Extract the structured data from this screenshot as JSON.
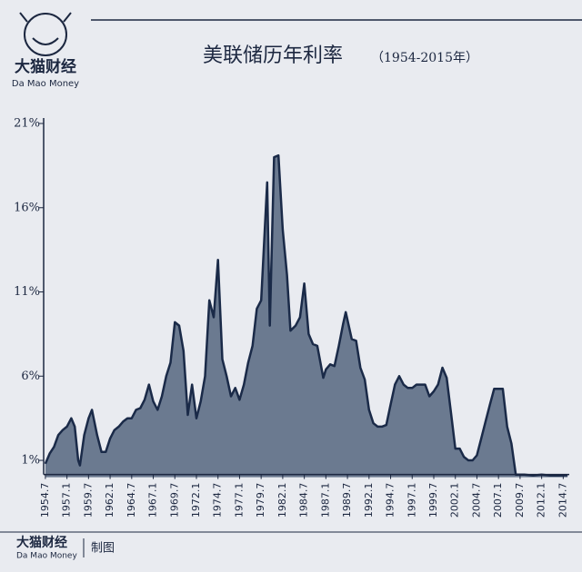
{
  "header": {
    "logo_cn": "大猫财经",
    "logo_en": "Da Mao Money"
  },
  "footer": {
    "logo_cn": "大猫财经",
    "logo_en": "Da Mao Money",
    "note": "制图"
  },
  "chart_data": {
    "type": "area",
    "title": "美联储历年利率",
    "subtitle": "（1954-2015年）",
    "color": "#6b7a90",
    "line_color": "#1a2a48",
    "xlim": [
      1954.3,
      2015.2
    ],
    "ylim": [
      0,
      21
    ],
    "yticks": [
      {
        "value": 1,
        "label": "1%"
      },
      {
        "value": 6,
        "label": "6%"
      },
      {
        "value": 11,
        "label": "11%"
      },
      {
        "value": 16,
        "label": "16%"
      },
      {
        "value": 21,
        "label": "21%"
      }
    ],
    "xticks": [
      {
        "value": 1954.5,
        "label": "1954.7"
      },
      {
        "value": 1957,
        "label": "1957.1"
      },
      {
        "value": 1959.5,
        "label": "1959.7"
      },
      {
        "value": 1962,
        "label": "1962.1"
      },
      {
        "value": 1964.5,
        "label": "1964.7"
      },
      {
        "value": 1967,
        "label": "1967.1"
      },
      {
        "value": 1969.5,
        "label": "1969.7"
      },
      {
        "value": 1972,
        "label": "1972.1"
      },
      {
        "value": 1974.5,
        "label": "1974.7"
      },
      {
        "value": 1977,
        "label": "1977.1"
      },
      {
        "value": 1979.5,
        "label": "1979.7"
      },
      {
        "value": 1982,
        "label": "1982.1"
      },
      {
        "value": 1984.5,
        "label": "1984.7"
      },
      {
        "value": 1987,
        "label": "1987.1"
      },
      {
        "value": 1989.5,
        "label": "1989.7"
      },
      {
        "value": 1992,
        "label": "1992.1"
      },
      {
        "value": 1994.5,
        "label": "1994.7"
      },
      {
        "value": 1997,
        "label": "1997.1"
      },
      {
        "value": 1999.5,
        "label": "1999.7"
      },
      {
        "value": 2002,
        "label": "2002.1"
      },
      {
        "value": 2004.5,
        "label": "2004.7"
      },
      {
        "value": 2007,
        "label": "2007.1"
      },
      {
        "value": 2009.5,
        "label": "2009.7"
      },
      {
        "value": 2012,
        "label": "2012.1"
      },
      {
        "value": 2014.5,
        "label": "2014.7"
      }
    ],
    "x": [
      1954.5,
      1955,
      1955.5,
      1956,
      1956.5,
      1957,
      1957.5,
      1957.9,
      1958.3,
      1958.5,
      1959,
      1959.5,
      1959.9,
      1960.5,
      1961,
      1961.5,
      1962,
      1962.5,
      1963,
      1963.5,
      1964,
      1964.5,
      1965,
      1965.5,
      1966,
      1966.5,
      1967,
      1967.5,
      1968,
      1968.5,
      1969,
      1969.5,
      1970,
      1970.5,
      1971,
      1971.5,
      1972,
      1972.5,
      1973,
      1973.5,
      1974,
      1974.5,
      1975,
      1975.5,
      1976,
      1976.5,
      1977,
      1977.5,
      1978,
      1978.5,
      1979,
      1979.5,
      1980.2,
      1980.5,
      1981,
      1981.5,
      1982,
      1982.5,
      1982.9,
      1983.5,
      1984,
      1984.5,
      1985,
      1985.5,
      1986,
      1986.7,
      1987,
      1987.5,
      1988,
      1988.5,
      1989,
      1989.3,
      1990,
      1990.5,
      1991,
      1991.5,
      1992,
      1992.5,
      1993,
      1993.5,
      1994,
      1994.5,
      1995,
      1995.5,
      1996,
      1996.5,
      1997,
      1997.5,
      1998,
      1998.5,
      1999,
      1999.5,
      2000,
      2000.5,
      2001,
      2001.5,
      2002,
      2002.5,
      2003,
      2003.5,
      2004,
      2004.5,
      2005,
      2005.5,
      2006,
      2006.5,
      2007,
      2007.5,
      2008,
      2008.5,
      2009,
      2010,
      2011,
      2012,
      2013,
      2014,
      2015
    ],
    "values": [
      0.8,
      1.4,
      1.8,
      2.5,
      2.8,
      3.0,
      3.5,
      3.0,
      1.0,
      0.7,
      2.5,
      3.5,
      4.0,
      2.5,
      1.5,
      1.5,
      2.3,
      2.8,
      3.0,
      3.3,
      3.5,
      3.5,
      4.0,
      4.1,
      4.6,
      5.5,
      4.5,
      4.0,
      4.8,
      6.0,
      6.8,
      9.2,
      9.0,
      7.5,
      3.7,
      5.5,
      3.5,
      4.5,
      6.0,
      10.5,
      9.5,
      12.9,
      7.0,
      6.0,
      4.8,
      5.3,
      4.6,
      5.5,
      6.8,
      7.8,
      10.0,
      10.5,
      17.5,
      9.0,
      19.0,
      19.1,
      14.7,
      12.0,
      8.7,
      9.0,
      9.5,
      11.5,
      8.5,
      7.9,
      7.8,
      5.9,
      6.4,
      6.7,
      6.6,
      7.8,
      9.1,
      9.8,
      8.2,
      8.1,
      6.5,
      5.8,
      4.0,
      3.2,
      3.0,
      3.0,
      3.1,
      4.3,
      5.5,
      6.0,
      5.5,
      5.3,
      5.3,
      5.5,
      5.5,
      5.5,
      4.8,
      5.1,
      5.5,
      6.5,
      5.9,
      3.8,
      1.7,
      1.7,
      1.2,
      1.0,
      1.0,
      1.3,
      2.3,
      3.3,
      4.3,
      5.25,
      5.25,
      5.25,
      3.0,
      2.0,
      0.15,
      0.15,
      0.1,
      0.15,
      0.1,
      0.1,
      0.12
    ]
  }
}
